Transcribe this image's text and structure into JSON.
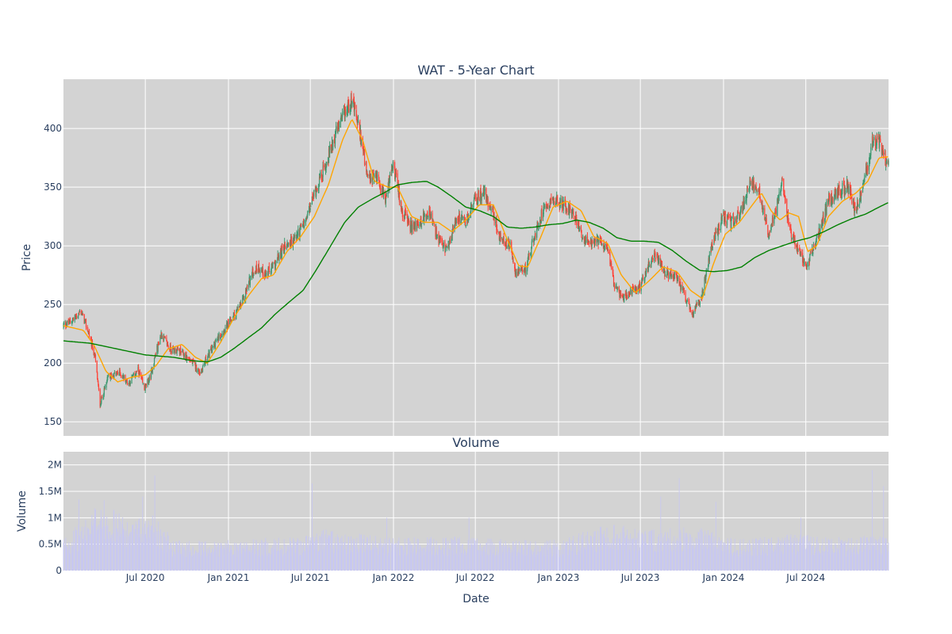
{
  "chart_data": {
    "type": "candlestick",
    "title": "WAT - 5-Year Chart",
    "subtitle_volume": "Volume",
    "ylabel_price": "Price",
    "ylabel_volume": "Volume",
    "xlabel": "Date",
    "x_range": [
      "2020-01-02",
      "2024-12-31"
    ],
    "price_ylim": [
      138,
      442
    ],
    "price_ticks": [
      150,
      200,
      250,
      300,
      350,
      400
    ],
    "volume_ylim": [
      0,
      2250000
    ],
    "volume_ticks": [
      {
        "value": 0,
        "label": "0"
      },
      {
        "value": 500000,
        "label": "0.5M"
      },
      {
        "value": 1000000,
        "label": "1M"
      },
      {
        "value": 1500000,
        "label": "1.5M"
      },
      {
        "value": 2000000,
        "label": "2M"
      }
    ],
    "x_ticks": [
      {
        "date": "2020-07-01",
        "label": "Jul 2020"
      },
      {
        "date": "2021-01-01",
        "label": "Jan 2021"
      },
      {
        "date": "2021-07-01",
        "label": "Jul 2021"
      },
      {
        "date": "2022-01-01",
        "label": "Jan 2022"
      },
      {
        "date": "2022-07-01",
        "label": "Jul 2022"
      },
      {
        "date": "2023-01-01",
        "label": "Jan 2023"
      },
      {
        "date": "2023-07-01",
        "label": "Jul 2023"
      },
      {
        "date": "2024-01-01",
        "label": "Jan 2024"
      },
      {
        "date": "2024-07-01",
        "label": "Jul 2024"
      }
    ],
    "price_path": [
      [
        "2020-01-02",
        232
      ],
      [
        "2020-01-20",
        236
      ],
      [
        "2020-02-10",
        244
      ],
      [
        "2020-02-25",
        228
      ],
      [
        "2020-03-12",
        205
      ],
      [
        "2020-03-23",
        165
      ],
      [
        "2020-04-10",
        188
      ],
      [
        "2020-05-05",
        192
      ],
      [
        "2020-05-25",
        183
      ],
      [
        "2020-06-15",
        194
      ],
      [
        "2020-06-29",
        178
      ],
      [
        "2020-07-12",
        188
      ],
      [
        "2020-07-24",
        208
      ],
      [
        "2020-08-05",
        225
      ],
      [
        "2020-08-25",
        212
      ],
      [
        "2020-09-15",
        210
      ],
      [
        "2020-10-10",
        202
      ],
      [
        "2020-10-30",
        192
      ],
      [
        "2020-11-15",
        205
      ],
      [
        "2020-12-10",
        222
      ],
      [
        "2021-01-05",
        235
      ],
      [
        "2021-02-01",
        252
      ],
      [
        "2021-02-20",
        275
      ],
      [
        "2021-03-08",
        282
      ],
      [
        "2021-03-25",
        275
      ],
      [
        "2021-04-15",
        285
      ],
      [
        "2021-05-05",
        300
      ],
      [
        "2021-05-25",
        305
      ],
      [
        "2021-06-20",
        320
      ],
      [
        "2021-07-10",
        345
      ],
      [
        "2021-08-05",
        370
      ],
      [
        "2021-08-25",
        395
      ],
      [
        "2021-09-15",
        412
      ],
      [
        "2021-09-30",
        425
      ],
      [
        "2021-10-20",
        395
      ],
      [
        "2021-11-05",
        355
      ],
      [
        "2021-11-25",
        360
      ],
      [
        "2021-12-15",
        340
      ],
      [
        "2021-12-31",
        370
      ],
      [
        "2022-01-20",
        330
      ],
      [
        "2022-02-10",
        315
      ],
      [
        "2022-03-01",
        320
      ],
      [
        "2022-03-20",
        330
      ],
      [
        "2022-04-10",
        305
      ],
      [
        "2022-04-30",
        295
      ],
      [
        "2022-05-20",
        325
      ],
      [
        "2022-06-10",
        320
      ],
      [
        "2022-06-30",
        340
      ],
      [
        "2022-07-20",
        345
      ],
      [
        "2022-08-08",
        330
      ],
      [
        "2022-08-25",
        305
      ],
      [
        "2022-09-15",
        300
      ],
      [
        "2022-09-30",
        275
      ],
      [
        "2022-10-20",
        280
      ],
      [
        "2022-11-10",
        310
      ],
      [
        "2022-12-01",
        335
      ],
      [
        "2022-12-20",
        340
      ],
      [
        "2023-01-10",
        335
      ],
      [
        "2023-02-01",
        330
      ],
      [
        "2023-02-20",
        310
      ],
      [
        "2023-03-10",
        300
      ],
      [
        "2023-04-01",
        305
      ],
      [
        "2023-04-20",
        300
      ],
      [
        "2023-05-05",
        265
      ],
      [
        "2023-05-25",
        255
      ],
      [
        "2023-06-15",
        262
      ],
      [
        "2023-07-01",
        265
      ],
      [
        "2023-07-20",
        285
      ],
      [
        "2023-08-05",
        292
      ],
      [
        "2023-08-25",
        275
      ],
      [
        "2023-09-15",
        275
      ],
      [
        "2023-10-10",
        255
      ],
      [
        "2023-10-25",
        240
      ],
      [
        "2023-11-15",
        260
      ],
      [
        "2023-12-05",
        300
      ],
      [
        "2024-01-01",
        325
      ],
      [
        "2024-01-20",
        320
      ],
      [
        "2024-02-10",
        330
      ],
      [
        "2024-03-01",
        355
      ],
      [
        "2024-03-20",
        345
      ],
      [
        "2024-04-10",
        310
      ],
      [
        "2024-04-25",
        330
      ],
      [
        "2024-05-10",
        360
      ],
      [
        "2024-05-25",
        315
      ],
      [
        "2024-06-15",
        295
      ],
      [
        "2024-07-01",
        282
      ],
      [
        "2024-07-20",
        300
      ],
      [
        "2024-08-05",
        318
      ],
      [
        "2024-08-20",
        340
      ],
      [
        "2024-09-10",
        345
      ],
      [
        "2024-09-30",
        352
      ],
      [
        "2024-10-20",
        330
      ],
      [
        "2024-11-10",
        360
      ],
      [
        "2024-11-25",
        388
      ],
      [
        "2024-12-10",
        390
      ],
      [
        "2024-12-20",
        375
      ],
      [
        "2024-12-31",
        372
      ]
    ],
    "series": [
      {
        "name": "MA short",
        "color": "#ffa500",
        "points": [
          [
            "2020-01-02",
            232
          ],
          [
            "2020-02-15",
            228
          ],
          [
            "2020-03-10",
            215
          ],
          [
            "2020-04-05",
            193
          ],
          [
            "2020-05-01",
            184
          ],
          [
            "2020-06-01",
            188
          ],
          [
            "2020-07-01",
            190
          ],
          [
            "2020-07-25",
            198
          ],
          [
            "2020-08-20",
            212
          ],
          [
            "2020-09-20",
            216
          ],
          [
            "2020-10-20",
            205
          ],
          [
            "2020-11-15",
            200
          ],
          [
            "2020-12-15",
            218
          ],
          [
            "2021-01-15",
            240
          ],
          [
            "2021-02-15",
            258
          ],
          [
            "2021-03-15",
            272
          ],
          [
            "2021-04-10",
            275
          ],
          [
            "2021-05-10",
            295
          ],
          [
            "2021-06-10",
            308
          ],
          [
            "2021-07-10",
            325
          ],
          [
            "2021-08-10",
            352
          ],
          [
            "2021-09-10",
            390
          ],
          [
            "2021-10-01",
            408
          ],
          [
            "2021-10-25",
            390
          ],
          [
            "2021-11-20",
            355
          ],
          [
            "2021-12-20",
            350
          ],
          [
            "2022-01-10",
            350
          ],
          [
            "2022-02-10",
            325
          ],
          [
            "2022-03-10",
            320
          ],
          [
            "2022-04-10",
            320
          ],
          [
            "2022-05-10",
            312
          ],
          [
            "2022-06-10",
            322
          ],
          [
            "2022-07-10",
            335
          ],
          [
            "2022-08-10",
            335
          ],
          [
            "2022-09-10",
            305
          ],
          [
            "2022-10-05",
            283
          ],
          [
            "2022-10-25",
            282
          ],
          [
            "2022-11-20",
            305
          ],
          [
            "2022-12-20",
            333
          ],
          [
            "2023-01-20",
            338
          ],
          [
            "2023-02-20",
            330
          ],
          [
            "2023-03-20",
            308
          ],
          [
            "2023-04-20",
            302
          ],
          [
            "2023-05-20",
            275
          ],
          [
            "2023-06-20",
            260
          ],
          [
            "2023-07-20",
            270
          ],
          [
            "2023-08-20",
            282
          ],
          [
            "2023-09-20",
            278
          ],
          [
            "2023-10-20",
            262
          ],
          [
            "2023-11-15",
            255
          ],
          [
            "2023-12-10",
            285
          ],
          [
            "2024-01-05",
            310
          ],
          [
            "2024-02-05",
            320
          ],
          [
            "2024-03-05",
            335
          ],
          [
            "2024-03-25",
            345
          ],
          [
            "2024-04-15",
            330
          ],
          [
            "2024-05-05",
            322
          ],
          [
            "2024-05-25",
            328
          ],
          [
            "2024-06-15",
            325
          ],
          [
            "2024-07-05",
            295
          ],
          [
            "2024-07-25",
            300
          ],
          [
            "2024-08-20",
            325
          ],
          [
            "2024-09-20",
            338
          ],
          [
            "2024-10-20",
            345
          ],
          [
            "2024-11-15",
            355
          ],
          [
            "2024-12-10",
            375
          ],
          [
            "2024-12-31",
            376
          ]
        ]
      },
      {
        "name": "MA long",
        "color": "#008000",
        "points": [
          [
            "2020-01-02",
            219
          ],
          [
            "2020-03-01",
            217
          ],
          [
            "2020-05-01",
            212
          ],
          [
            "2020-07-01",
            207
          ],
          [
            "2020-09-01",
            205
          ],
          [
            "2020-10-15",
            202
          ],
          [
            "2020-11-15",
            201
          ],
          [
            "2020-12-15",
            205
          ],
          [
            "2021-01-15",
            213
          ],
          [
            "2021-02-15",
            222
          ],
          [
            "2021-03-15",
            230
          ],
          [
            "2021-04-15",
            242
          ],
          [
            "2021-05-15",
            252
          ],
          [
            "2021-06-15",
            262
          ],
          [
            "2021-07-15",
            280
          ],
          [
            "2021-08-15",
            300
          ],
          [
            "2021-09-15",
            320
          ],
          [
            "2021-10-15",
            333
          ],
          [
            "2021-11-15",
            340
          ],
          [
            "2021-12-15",
            346
          ],
          [
            "2022-01-10",
            352
          ],
          [
            "2022-02-10",
            354
          ],
          [
            "2022-03-15",
            355
          ],
          [
            "2022-04-10",
            350
          ],
          [
            "2022-05-10",
            342
          ],
          [
            "2022-06-10",
            333
          ],
          [
            "2022-07-10",
            330
          ],
          [
            "2022-08-10",
            325
          ],
          [
            "2022-09-10",
            316
          ],
          [
            "2022-10-10",
            315
          ],
          [
            "2022-11-10",
            316
          ],
          [
            "2022-12-10",
            318
          ],
          [
            "2023-01-10",
            319
          ],
          [
            "2023-02-10",
            322
          ],
          [
            "2023-03-10",
            320
          ],
          [
            "2023-04-10",
            315
          ],
          [
            "2023-05-10",
            307
          ],
          [
            "2023-06-10",
            304
          ],
          [
            "2023-07-10",
            304
          ],
          [
            "2023-08-10",
            303
          ],
          [
            "2023-09-10",
            296
          ],
          [
            "2023-10-10",
            287
          ],
          [
            "2023-11-10",
            279
          ],
          [
            "2023-12-10",
            278
          ],
          [
            "2024-01-10",
            279
          ],
          [
            "2024-02-10",
            282
          ],
          [
            "2024-03-10",
            290
          ],
          [
            "2024-04-10",
            296
          ],
          [
            "2024-05-10",
            300
          ],
          [
            "2024-06-10",
            304
          ],
          [
            "2024-07-10",
            307
          ],
          [
            "2024-08-10",
            312
          ],
          [
            "2024-09-10",
            318
          ],
          [
            "2024-10-10",
            323
          ],
          [
            "2024-11-10",
            327
          ],
          [
            "2024-12-10",
            333
          ],
          [
            "2024-12-31",
            337
          ]
        ]
      }
    ],
    "up_color": "#3d9970",
    "down_color": "#ff4136",
    "volume_color": "#c8c8f0",
    "volume_path": [
      [
        "2020-01-02",
        500000
      ],
      [
        "2020-03-01",
        800000
      ],
      [
        "2020-03-20",
        1100000
      ],
      [
        "2020-06-01",
        700000
      ],
      [
        "2020-07-15",
        900000
      ],
      [
        "2020-09-01",
        450000
      ],
      [
        "2021-01-01",
        450000
      ],
      [
        "2021-06-01",
        500000
      ],
      [
        "2021-08-01",
        600000
      ],
      [
        "2022-01-01",
        480000
      ],
      [
        "2022-06-01",
        500000
      ],
      [
        "2022-10-01",
        450000
      ],
      [
        "2023-01-01",
        450000
      ],
      [
        "2023-05-01",
        700000
      ],
      [
        "2023-07-01",
        600000
      ],
      [
        "2023-11-01",
        650000
      ],
      [
        "2024-02-01",
        450000
      ],
      [
        "2024-06-01",
        550000
      ],
      [
        "2024-10-01",
        480000
      ],
      [
        "2024-12-31",
        550000
      ]
    ],
    "volume_spikes": [
      [
        "2020-02-05",
        1350000
      ],
      [
        "2020-03-25",
        1150000
      ],
      [
        "2020-05-10",
        1150000
      ],
      [
        "2020-06-25",
        1400000
      ],
      [
        "2020-07-05",
        2050000
      ],
      [
        "2020-07-22",
        1800000
      ],
      [
        "2021-07-05",
        1650000
      ],
      [
        "2021-12-17",
        1000000
      ],
      [
        "2022-06-17",
        1000000
      ],
      [
        "2023-01-15",
        1300000
      ],
      [
        "2023-05-20",
        1600000
      ],
      [
        "2023-06-25",
        1650000
      ],
      [
        "2023-08-15",
        1400000
      ],
      [
        "2023-09-25",
        1750000
      ],
      [
        "2023-12-15",
        1300000
      ],
      [
        "2024-06-20",
        1000000
      ],
      [
        "2024-11-25",
        1900000
      ],
      [
        "2024-12-20",
        1600000
      ]
    ]
  }
}
